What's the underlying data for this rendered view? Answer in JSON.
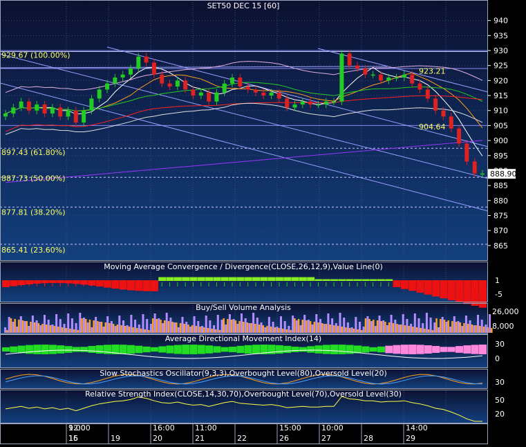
{
  "colors": {
    "bg_top": "#0c1030",
    "bg_bottom": "#123a78",
    "frame": "#9aa6c0",
    "grid": "#3b4c78",
    "axis_text": "#ffffff",
    "fib_text": "#ffff66",
    "candle_up": "#22cc22",
    "candle_down": "#dd2222",
    "price_box_bg": "#ffffff",
    "price_box_text": "#000000"
  },
  "main": {
    "title": "SET50 DEC 15   [60]",
    "yticks": [
      940,
      935,
      930,
      925,
      920,
      915,
      910,
      905,
      900,
      895,
      890,
      885,
      880,
      875,
      870,
      865
    ],
    "ylim": [
      861.5,
      945
    ],
    "fib_levels": [
      {
        "label": "929.67 (100.00%)",
        "value": 929.67
      },
      {
        "label": "897.43 (61.80%)",
        "value": 897.43
      },
      {
        "label": "887.73 (50.00%)",
        "value": 887.73
      },
      {
        "label": "877.81 (38.20%)",
        "value": 877.81
      },
      {
        "label": "865.41 (23.60%)",
        "value": 865.41
      }
    ],
    "horizontal_lines": [
      930,
      924,
      905
    ],
    "annotations": [
      {
        "text": "923.21",
        "value": 923.21
      },
      {
        "text": "904.64",
        "value": 904.64
      }
    ],
    "last_price": {
      "text": "888.90",
      "value": 888.9
    }
  },
  "chart_data": {
    "type": "candlestick",
    "series": [
      {
        "name": "Close",
        "values": [
          909,
          911,
          913,
          910,
          912,
          909,
          911,
          908,
          910,
          906,
          910,
          914,
          917,
          919,
          921,
          922,
          924,
          928,
          926,
          922,
          919,
          918,
          920,
          917,
          915,
          916,
          913,
          916,
          919,
          921,
          918,
          917,
          916,
          915,
          916,
          914,
          911,
          912,
          913,
          912,
          912,
          913,
          913,
          929,
          925,
          924,
          922,
          922,
          920,
          921,
          921,
          922,
          919,
          917,
          914,
          910,
          908,
          904,
          899,
          893,
          889,
          889
        ]
      }
    ],
    "sessions": [
      {
        "day": "15",
        "time": "9:00"
      },
      {
        "day": "16",
        "time": "12:00"
      },
      {
        "day": "19",
        "time": ""
      },
      {
        "day": "20",
        "time": "16:00"
      },
      {
        "day": "21",
        "time": "11:00"
      },
      {
        "day": "22",
        "time": ""
      },
      {
        "day": "26",
        "time": "15:00"
      },
      {
        "day": "27",
        "time": "10:00"
      },
      {
        "day": "28",
        "time": ""
      },
      {
        "day": "29",
        "time": "14:00"
      }
    ]
  },
  "panels": [
    {
      "title": "Moving Average Convergence / Divergence(CLOSE,26,12,9),Value Line(0)",
      "yticks": [
        "1",
        "-5"
      ]
    },
    {
      "title": "Buy/Sell Volume Analysis",
      "yticks": [
        "26,000",
        "8,000"
      ]
    },
    {
      "title": "Average Directional Movement Index(14)",
      "yticks": [
        "30",
        "0"
      ]
    },
    {
      "title": "Slow Stochastics Oscillator(9,3,3),Overbought Level(80),Oversold Level(20)",
      "yticks": [
        "30"
      ]
    },
    {
      "title": "Relative Strength Index(CLOSE,14,30,70),Overbought Level(70),Oversold Level(30)",
      "yticks": [
        "50",
        "20"
      ]
    }
  ]
}
